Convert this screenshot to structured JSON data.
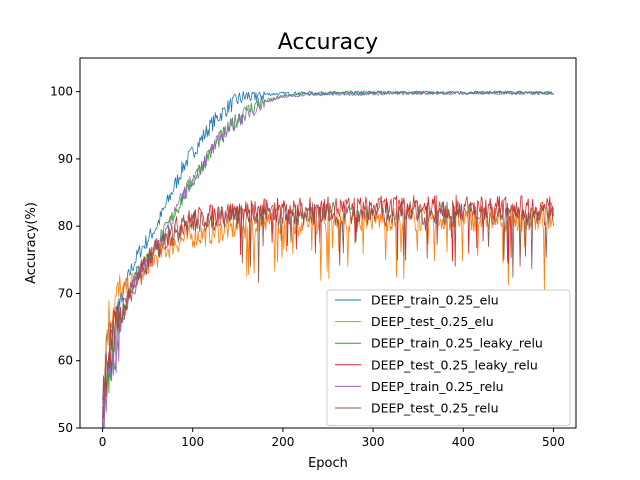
{
  "chart_data": {
    "type": "line",
    "title": "Accuracy",
    "xlabel": "Epoch",
    "ylabel": "Accuracy(%)",
    "xlim": [
      -25,
      525
    ],
    "ylim": [
      50,
      105
    ],
    "xticks": [
      0,
      100,
      200,
      300,
      400,
      500
    ],
    "yticks": [
      50,
      60,
      70,
      80,
      90,
      100
    ],
    "grid": false,
    "legend_position": "lower-right",
    "series": [
      {
        "name": "DEEP_train_0.25_elu",
        "color": "#1f77b4",
        "x": [
          0,
          5,
          10,
          20,
          30,
          40,
          50,
          60,
          70,
          80,
          90,
          100,
          110,
          120,
          130,
          140,
          150,
          160,
          170,
          180,
          200,
          220,
          250,
          300,
          350,
          400,
          450,
          500
        ],
        "y": [
          52,
          64,
          63,
          69,
          73,
          76,
          78,
          80,
          83,
          86,
          89,
          91,
          93,
          95,
          96.5,
          97.8,
          98.8,
          99.3,
          99.5,
          99.6,
          99.7,
          99.8,
          99.8,
          99.9,
          99.9,
          99.9,
          99.9,
          99.8
        ]
      },
      {
        "name": "DEEP_test_0.25_elu",
        "color": "#ff7f0e",
        "x": [
          0,
          5,
          10,
          20,
          30,
          40,
          50,
          60,
          70,
          80,
          90,
          100,
          120,
          140,
          160,
          180,
          200,
          220,
          250,
          300,
          350,
          400,
          450,
          500
        ],
        "y": [
          52,
          65,
          68,
          70,
          71,
          73,
          74.5,
          75.5,
          76.5,
          77.5,
          78,
          78.5,
          79,
          79.5,
          80,
          80.3,
          80.5,
          80.6,
          80.8,
          81,
          81,
          81,
          81,
          81
        ]
      },
      {
        "name": "DEEP_train_0.25_leaky_relu",
        "color": "#2ca02c",
        "x": [
          0,
          5,
          10,
          20,
          30,
          40,
          50,
          60,
          70,
          80,
          90,
          100,
          110,
          120,
          130,
          140,
          150,
          160,
          170,
          180,
          200,
          220,
          250,
          300,
          350,
          400,
          450,
          500
        ],
        "y": [
          51,
          58,
          60,
          66,
          71,
          73.5,
          75.5,
          77.5,
          79.5,
          82,
          84.5,
          87,
          89,
          91,
          93,
          94.5,
          96,
          97,
          98,
          98.6,
          99.3,
          99.6,
          99.7,
          99.8,
          99.8,
          99.8,
          99.8,
          99.8
        ]
      },
      {
        "name": "DEEP_test_0.25_leaky_relu",
        "color": "#d62728",
        "x": [
          0,
          5,
          10,
          20,
          30,
          40,
          50,
          60,
          70,
          80,
          90,
          100,
          120,
          140,
          160,
          180,
          200,
          220,
          250,
          300,
          350,
          400,
          450,
          500
        ],
        "y": [
          53,
          60,
          63,
          67,
          70,
          72.5,
          74.5,
          76.5,
          78,
          79.5,
          80.5,
          81,
          81.5,
          82,
          82.2,
          82.3,
          82.5,
          82.5,
          82.6,
          82.7,
          82.8,
          82.8,
          82.8,
          82.8
        ]
      },
      {
        "name": "DEEP_train_0.25_relu",
        "color": "#9467bd",
        "x": [
          0,
          5,
          10,
          20,
          30,
          40,
          50,
          60,
          70,
          80,
          90,
          100,
          110,
          120,
          130,
          140,
          150,
          160,
          170,
          180,
          200,
          220,
          250,
          300,
          350,
          400,
          450,
          500
        ],
        "y": [
          51,
          57,
          59,
          65,
          70.5,
          73,
          75,
          77,
          79.5,
          82,
          84.5,
          87,
          89,
          91,
          93,
          94.5,
          95.8,
          96.8,
          97.8,
          98.5,
          99.2,
          99.5,
          99.6,
          99.7,
          99.8,
          99.8,
          99.8,
          99.8
        ]
      },
      {
        "name": "DEEP_test_0.25_relu",
        "color": "#8c564b",
        "x": [
          0,
          5,
          10,
          20,
          30,
          40,
          50,
          60,
          70,
          80,
          90,
          100,
          120,
          140,
          160,
          180,
          200,
          220,
          250,
          300,
          350,
          400,
          450,
          500
        ],
        "y": [
          52,
          59,
          62,
          66,
          70,
          72.5,
          74.5,
          76.5,
          78,
          79,
          80,
          80.5,
          81,
          81.3,
          81.5,
          81.6,
          81.8,
          81.8,
          81.8,
          82,
          82,
          82,
          82,
          81.8
        ]
      }
    ]
  }
}
